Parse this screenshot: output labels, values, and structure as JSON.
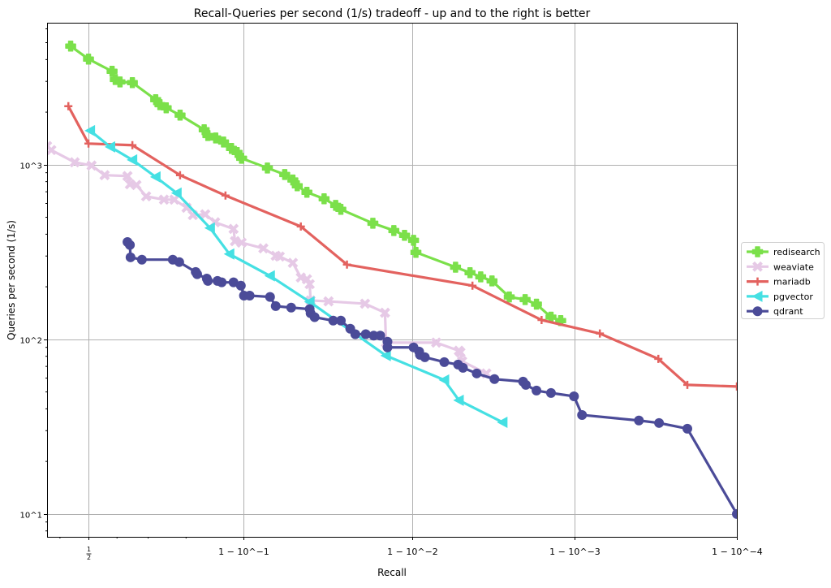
{
  "chart_data": {
    "type": "line",
    "title": "Recall-Queries per second (1/s) tradeoff - up and to the right is better",
    "xlabel": "Recall",
    "ylabel": "Queries per second (1/s)",
    "xscale": "logit",
    "yscale": "log",
    "xlim": [
      0.357,
      0.9999
    ],
    "ylim": [
      7.4,
      6500
    ],
    "grid": true,
    "legend_position": "right, outside",
    "x_ticks": [
      {
        "value": 0.5,
        "label": "1/2"
      },
      {
        "value": 0.9,
        "label": "1 − 10^−1"
      },
      {
        "value": 0.99,
        "label": "1 − 10^−2"
      },
      {
        "value": 0.999,
        "label": "1 − 10^−3"
      },
      {
        "value": 0.9999,
        "label": "1 − 10^−4"
      }
    ],
    "y_ticks": [
      {
        "value": 10,
        "label": "10^1"
      },
      {
        "value": 100,
        "label": "10^2"
      },
      {
        "value": 1000,
        "label": "10^3"
      }
    ],
    "series": [
      {
        "name": "redisearch",
        "color": "#7be04a",
        "marker": "plus-filled",
        "x": [
          0.437,
          0.5,
          0.583,
          0.594,
          0.61,
          0.651,
          0.722,
          0.734,
          0.751,
          0.786,
          0.838,
          0.845,
          0.859,
          0.872,
          0.884,
          0.892,
          0.898,
          0.927,
          0.942,
          0.948,
          0.951,
          0.957,
          0.966,
          0.971,
          0.973,
          0.9827,
          0.9871,
          0.9889,
          0.99022,
          0.99054,
          0.99459,
          0.99559,
          0.99621,
          0.99677,
          0.99747,
          0.99798,
          0.99828,
          0.9986,
          0.99878
        ],
        "y": [
          4775,
          4027,
          3428,
          3077,
          2980,
          2951,
          2357,
          2208,
          2117,
          1923,
          1585,
          1469,
          1422,
          1349,
          1239,
          1175,
          1089,
          958,
          879,
          817,
          757,
          695,
          638,
          585,
          555,
          462,
          420,
          394,
          369,
          315,
          259,
          241,
          228,
          216,
          175,
          169,
          159,
          134,
          128
        ]
      },
      {
        "name": "weaviate",
        "color": "#e6c9e6",
        "marker": "x-filled",
        "x": [
          0.357,
          0.371,
          0.451,
          0.511,
          0.557,
          0.635,
          0.643,
          0.664,
          0.694,
          0.745,
          0.772,
          0.801,
          0.815,
          0.84,
          0.858,
          0.887,
          0.889,
          0.898,
          0.923,
          0.9346,
          0.938,
          0.948,
          0.9533,
          0.957,
          0.9586,
          0.9591,
          0.968,
          0.9807,
          0.9854,
          0.9856,
          0.99289,
          0.99484,
          0.99495,
          0.99507,
          0.9965
        ],
        "y": [
          1279,
          1213,
          1033,
          989,
          871,
          861,
          773,
          765,
          659,
          631,
          631,
          567,
          515,
          520,
          468,
          429,
          365,
          358,
          332,
          301,
          298,
          274,
          226,
          221,
          207,
          167,
          165,
          160,
          142,
          95.8,
          95.8,
          86.1,
          84.3,
          74.9,
          63.8
        ]
      },
      {
        "name": "mariadb",
        "color": "#e3625f",
        "marker": "plus",
        "x": [
          0.429,
          0.5,
          0.651,
          0.786,
          0.875,
          0.9533,
          0.9752,
          0.99574,
          0.9984,
          0.9993,
          0.999695,
          0.999798,
          0.9999
        ],
        "y": [
          2163,
          1321,
          1294,
          871,
          666,
          443,
          268,
          203,
          129,
          108,
          77.3,
          54.9,
          53.7
        ]
      },
      {
        "name": "pgvector",
        "color": "#45e0e3",
        "marker": "triangle-left",
        "x": [
          0.506,
          0.577,
          0.651,
          0.722,
          0.778,
          0.849,
          0.881,
          0.9295,
          0.9586,
          0.9856,
          0.99366,
          0.99484,
          0.99722
        ],
        "y": [
          1567,
          1265,
          1066,
          851,
          688,
          434,
          308,
          231,
          164,
          80.7,
          58.5,
          44.8,
          33.5
        ]
      },
      {
        "name": "qdrant",
        "color": "#4b4b98",
        "marker": "circle",
        "x": [
          0.635,
          0.643,
          0.645,
          0.681,
          0.768,
          0.784,
          0.821,
          0.824,
          0.843,
          0.845,
          0.862,
          0.869,
          0.887,
          0.897,
          0.901,
          0.908,
          0.9295,
          0.9346,
          0.9468,
          0.9586,
          0.9591,
          0.9613,
          0.97,
          0.973,
          0.9763,
          0.9779,
          0.9809,
          0.9829,
          0.9844,
          0.9859,
          0.9859,
          0.99022,
          0.99096,
          0.99106,
          0.99166,
          0.99366,
          0.99478,
          0.99513,
          0.99599,
          0.99688,
          0.99792,
          0.998,
          0.99828,
          0.9986,
          0.99899,
          0.999099,
          0.999598,
          0.999698,
          0.999798,
          0.9999
        ],
        "y": [
          361,
          347,
          295,
          286,
          286,
          277,
          243,
          236,
          223,
          216,
          216,
          212,
          212,
          203,
          178,
          178,
          175,
          155,
          152,
          149,
          141,
          134,
          128,
          128,
          115,
          107,
          107,
          105,
          105,
          97,
          89.9,
          89.9,
          85.1,
          81.6,
          79.0,
          74.1,
          71.7,
          68.7,
          63.8,
          59.2,
          57.3,
          54.9,
          50.9,
          49.3,
          47.2,
          36.9,
          34.3,
          33.2,
          30.8,
          10
        ]
      }
    ]
  }
}
